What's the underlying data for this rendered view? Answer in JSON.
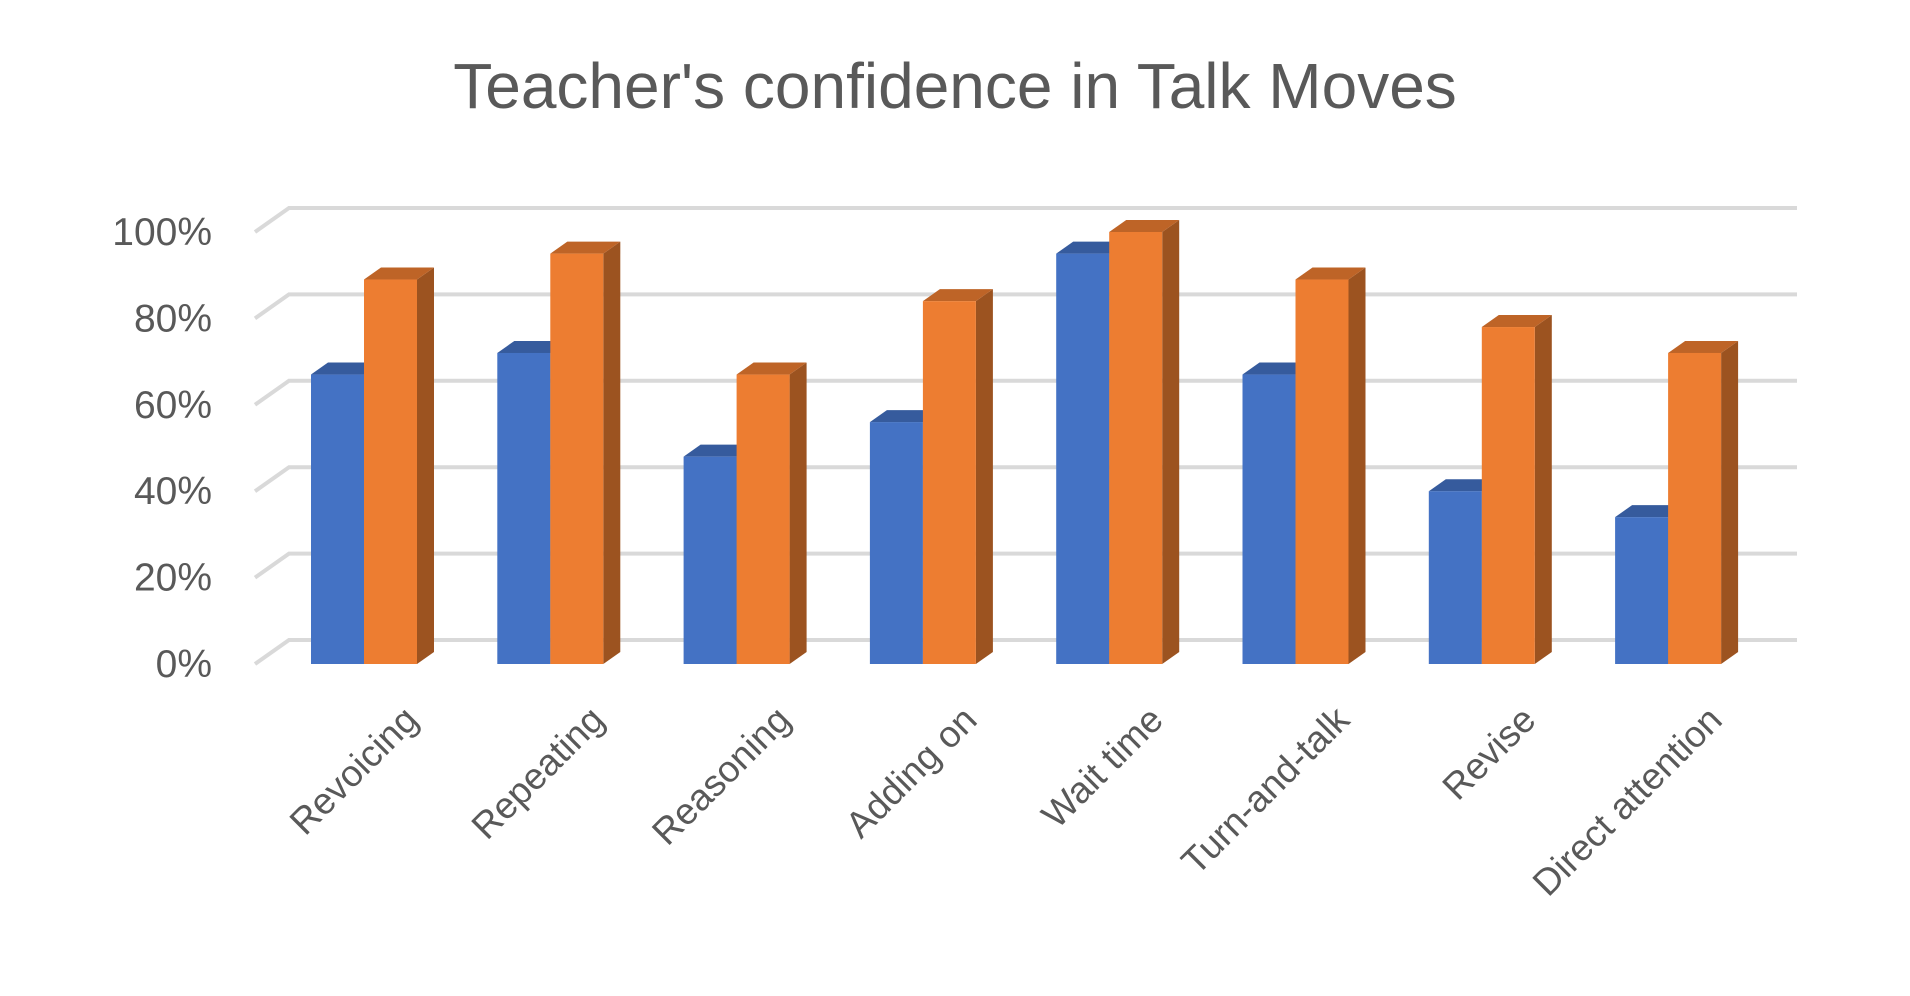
{
  "chart_data": {
    "type": "bar",
    "title": "Teacher's confidence in Talk Moves",
    "categories": [
      "Revoicing",
      "Repeating",
      "Reasoning",
      "Adding on",
      "Wait time",
      "Turn-and-talk",
      "Revise",
      "Direct attention"
    ],
    "series": [
      {
        "values": [
          0.67,
          0.72,
          0.48,
          0.56,
          0.95,
          0.67,
          0.4,
          0.34
        ],
        "color": "#4472c4"
      },
      {
        "values": [
          0.89,
          0.95,
          0.67,
          0.84,
          1.0,
          0.89,
          0.78,
          0.72
        ],
        "color": "#ed7d31"
      }
    ],
    "yticks": [
      "0%",
      "20%",
      "40%",
      "60%",
      "80%",
      "100%"
    ],
    "ylim": [
      0,
      1
    ],
    "grid": true,
    "legend": false,
    "style": "3d-clustered-column"
  }
}
